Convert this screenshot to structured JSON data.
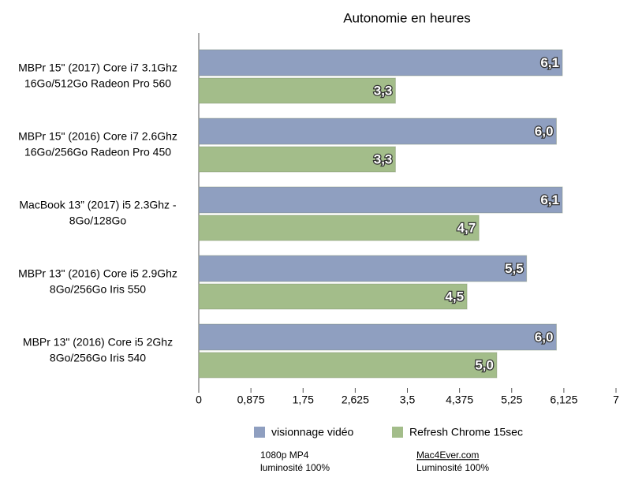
{
  "chart_data": {
    "type": "hbar",
    "title": "Autonomie en heures",
    "categories": [
      [
        "MBPr 15\" (2017) Core i7 3.1Ghz",
        "16Go/512Go Radeon Pro 560"
      ],
      [
        "MBPr 15\" (2016) Core i7 2.6Ghz",
        "16Go/256Go Radeon Pro 450"
      ],
      [
        "MacBook 13” (2017) i5 2.3Ghz -",
        "8Go/128Go"
      ],
      [
        "MBPr 13\" (2016) Core i5 2.9Ghz",
        "8Go/256Go Iris 550"
      ],
      [
        "MBPr 13\" (2016) Core i5 2Ghz",
        "8Go/256Go Iris 540"
      ]
    ],
    "series": [
      {
        "name": "visionnage vidéo",
        "color": "#8f9fc0",
        "values": [
          6.1,
          6.0,
          6.1,
          5.5,
          6.0
        ],
        "value_labels": [
          "6,1",
          "6,0",
          "6,1",
          "5,5",
          "6,0"
        ]
      },
      {
        "name": "Refresh Chrome 15sec",
        "color": "#a3bd8a",
        "values": [
          3.3,
          3.3,
          4.7,
          4.5,
          5.0
        ],
        "value_labels": [
          "3,3",
          "3,3",
          "4,7",
          "4,5",
          "5,0"
        ]
      }
    ],
    "xlim": [
      0,
      7
    ],
    "xticks": [
      0,
      {
        "value": 0.875,
        "label": "0,875"
      },
      {
        "value": 1.75,
        "label": "1,75"
      },
      {
        "value": 2.625,
        "label": "2,625"
      },
      {
        "value": 3.5,
        "label": "3,5"
      },
      {
        "value": 4.375,
        "label": "4,375"
      },
      {
        "value": 5.25,
        "label": "5,25"
      },
      {
        "value": 6.125,
        "label": "6,125"
      },
      7
    ],
    "grid": false,
    "notes": [
      [
        "1080p MP4",
        "luminosité 100%"
      ],
      [
        "Mac4Ever.com",
        "Luminosité 100%"
      ]
    ]
  }
}
